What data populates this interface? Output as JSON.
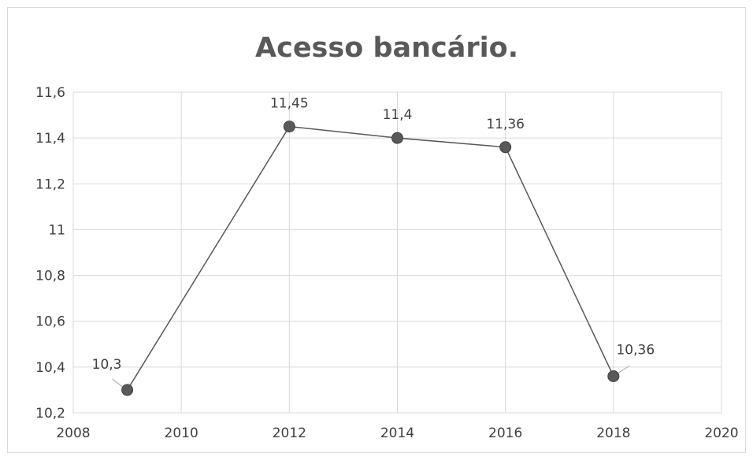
{
  "chart_data": {
    "type": "line",
    "title": "Acesso bancário.",
    "xlabel": "",
    "ylabel": "",
    "xlim": [
      2008,
      2020
    ],
    "ylim": [
      10.2,
      11.6
    ],
    "x_ticks": [
      2008,
      2010,
      2012,
      2014,
      2016,
      2018,
      2020
    ],
    "x_tick_labels": [
      "2008",
      "2010",
      "2012",
      "2014",
      "2016",
      "2018",
      "2020"
    ],
    "y_ticks": [
      10.2,
      10.4,
      10.6,
      10.8,
      11.0,
      11.2,
      11.4,
      11.6
    ],
    "y_tick_labels": [
      "10,2",
      "10,4",
      "10,6",
      "10,8",
      "11",
      "11,2",
      "11,4",
      "11,6"
    ],
    "grid": true,
    "legend": "none",
    "series": [
      {
        "x": [
          2009,
          2012,
          2014,
          2016,
          2018
        ],
        "y": [
          10.3,
          11.45,
          11.4,
          11.36,
          10.36
        ],
        "data_labels": [
          "10,3",
          "11,45",
          "11,4",
          "11,36",
          "10,36"
        ],
        "color": "#595959"
      }
    ]
  }
}
